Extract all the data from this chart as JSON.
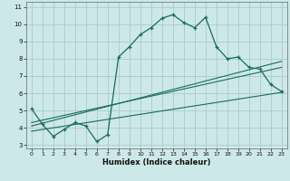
{
  "xlabel": "Humidex (Indice chaleur)",
  "xlim": [
    -0.5,
    23.5
  ],
  "ylim": [
    2.8,
    11.3
  ],
  "xticks": [
    0,
    1,
    2,
    3,
    4,
    5,
    6,
    7,
    8,
    9,
    10,
    11,
    12,
    13,
    14,
    15,
    16,
    17,
    18,
    19,
    20,
    21,
    22,
    23
  ],
  "yticks": [
    3,
    4,
    5,
    6,
    7,
    8,
    9,
    10,
    11
  ],
  "background_color": "#cde8e8",
  "grid_color": "#aacccc",
  "line_color": "#1a6b5a",
  "main_line_x": [
    0,
    1,
    2,
    3,
    4,
    5,
    6,
    7,
    8,
    9,
    10,
    11,
    12,
    13,
    14,
    15,
    16,
    17,
    18,
    19,
    20,
    21,
    22,
    23
  ],
  "main_line_y": [
    5.1,
    4.2,
    3.5,
    3.9,
    4.3,
    4.1,
    3.2,
    3.6,
    8.1,
    8.7,
    9.4,
    9.8,
    10.35,
    10.55,
    10.1,
    9.8,
    10.4,
    8.7,
    8.0,
    8.1,
    7.5,
    7.4,
    6.5,
    6.1
  ],
  "reg_line1_x": [
    0,
    23
  ],
  "reg_line1_y": [
    4.1,
    7.85
  ],
  "reg_line2_x": [
    0,
    23
  ],
  "reg_line2_y": [
    4.3,
    7.5
  ],
  "reg_line3_x": [
    0,
    23
  ],
  "reg_line3_y": [
    3.8,
    6.05
  ]
}
